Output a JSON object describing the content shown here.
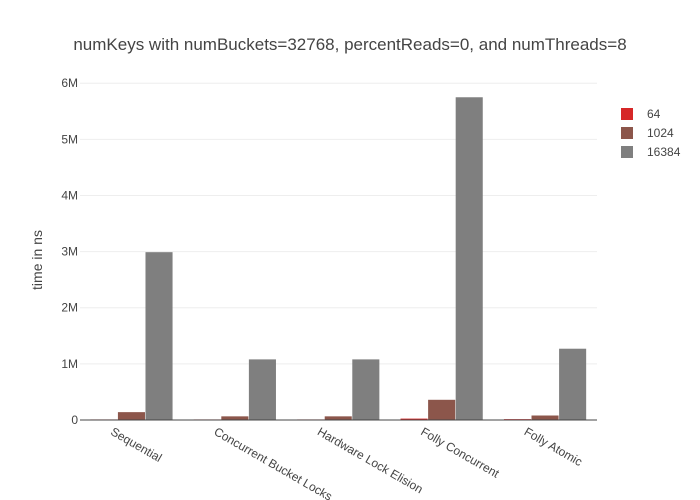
{
  "chart_data": {
    "type": "bar",
    "title": "numKeys with numBuckets=32768, percentReads=0, and numThreads=8",
    "xlabel": "",
    "ylabel": "time in ns",
    "categories": [
      "Sequential",
      "Concurrent Bucket Locks",
      "Hardware Lock Elision",
      "Folly Concurrent",
      "Folly Atomic"
    ],
    "series": [
      {
        "name": "64",
        "color": "#d62728",
        "values": [
          10000,
          10000,
          10000,
          25000,
          15000
        ]
      },
      {
        "name": "1024",
        "color": "#8c564b",
        "values": [
          140000,
          65000,
          65000,
          360000,
          80000
        ]
      },
      {
        "name": "16384",
        "color": "#7f7f7f",
        "values": [
          2990000,
          1080000,
          1080000,
          5750000,
          1270000
        ]
      }
    ],
    "ylim": [
      0,
      6200000
    ],
    "yticks": [
      {
        "value": 0,
        "label": "0"
      },
      {
        "value": 1000000,
        "label": "1M"
      },
      {
        "value": 2000000,
        "label": "2M"
      },
      {
        "value": 3000000,
        "label": "3M"
      },
      {
        "value": 4000000,
        "label": "4M"
      },
      {
        "value": 5000000,
        "label": "5M"
      },
      {
        "value": 6000000,
        "label": "6M"
      }
    ],
    "grid": true,
    "legend_position": "top-right"
  }
}
